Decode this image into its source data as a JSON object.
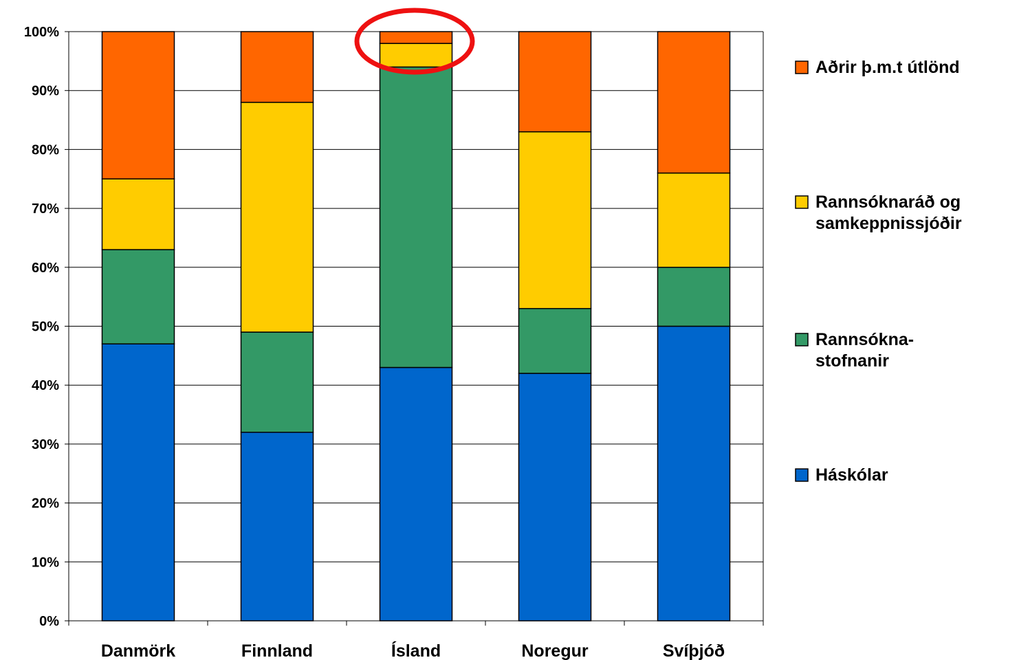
{
  "chart_data": {
    "type": "bar",
    "stacked": true,
    "percent": true,
    "categories": [
      "Danmörk",
      "Finnland",
      "Ísland",
      "Noregur",
      "Svíþjóð"
    ],
    "ylim": [
      0,
      100
    ],
    "yticks": [
      "0%",
      "10%",
      "20%",
      "30%",
      "40%",
      "50%",
      "60%",
      "70%",
      "80%",
      "90%",
      "100%"
    ],
    "grid": true,
    "legend_position": "right",
    "series": [
      {
        "name": "Háskólar",
        "color": "#0066CC",
        "values": [
          47,
          32,
          43,
          42,
          50
        ]
      },
      {
        "name": "Rannsókna-stofnanir",
        "color": "#339966",
        "values": [
          16,
          17,
          51,
          11,
          10
        ]
      },
      {
        "name": "Rannsóknaráð og samkeppnissjóðir",
        "color": "#FFCC00",
        "values": [
          12,
          39,
          4,
          30,
          16
        ]
      },
      {
        "name": "Aðrir þ.m.t útlönd",
        "color": "#FF6600",
        "values": [
          25,
          12,
          2,
          17,
          24
        ]
      }
    ],
    "legend": [
      {
        "lines": [
          "Aðrir þ.m.t útlönd"
        ],
        "color": "#FF6600"
      },
      {
        "lines": [
          "Rannsóknaráð og",
          "samkeppnissjóðir"
        ],
        "color": "#FFCC00"
      },
      {
        "lines": [
          "Rannsókna-",
          "stofnanir"
        ],
        "color": "#339966"
      },
      {
        "lines": [
          "Háskólar"
        ],
        "color": "#0066CC"
      }
    ],
    "annotation": {
      "type": "circle",
      "color": "#EE1111",
      "category": "Ísland"
    }
  }
}
